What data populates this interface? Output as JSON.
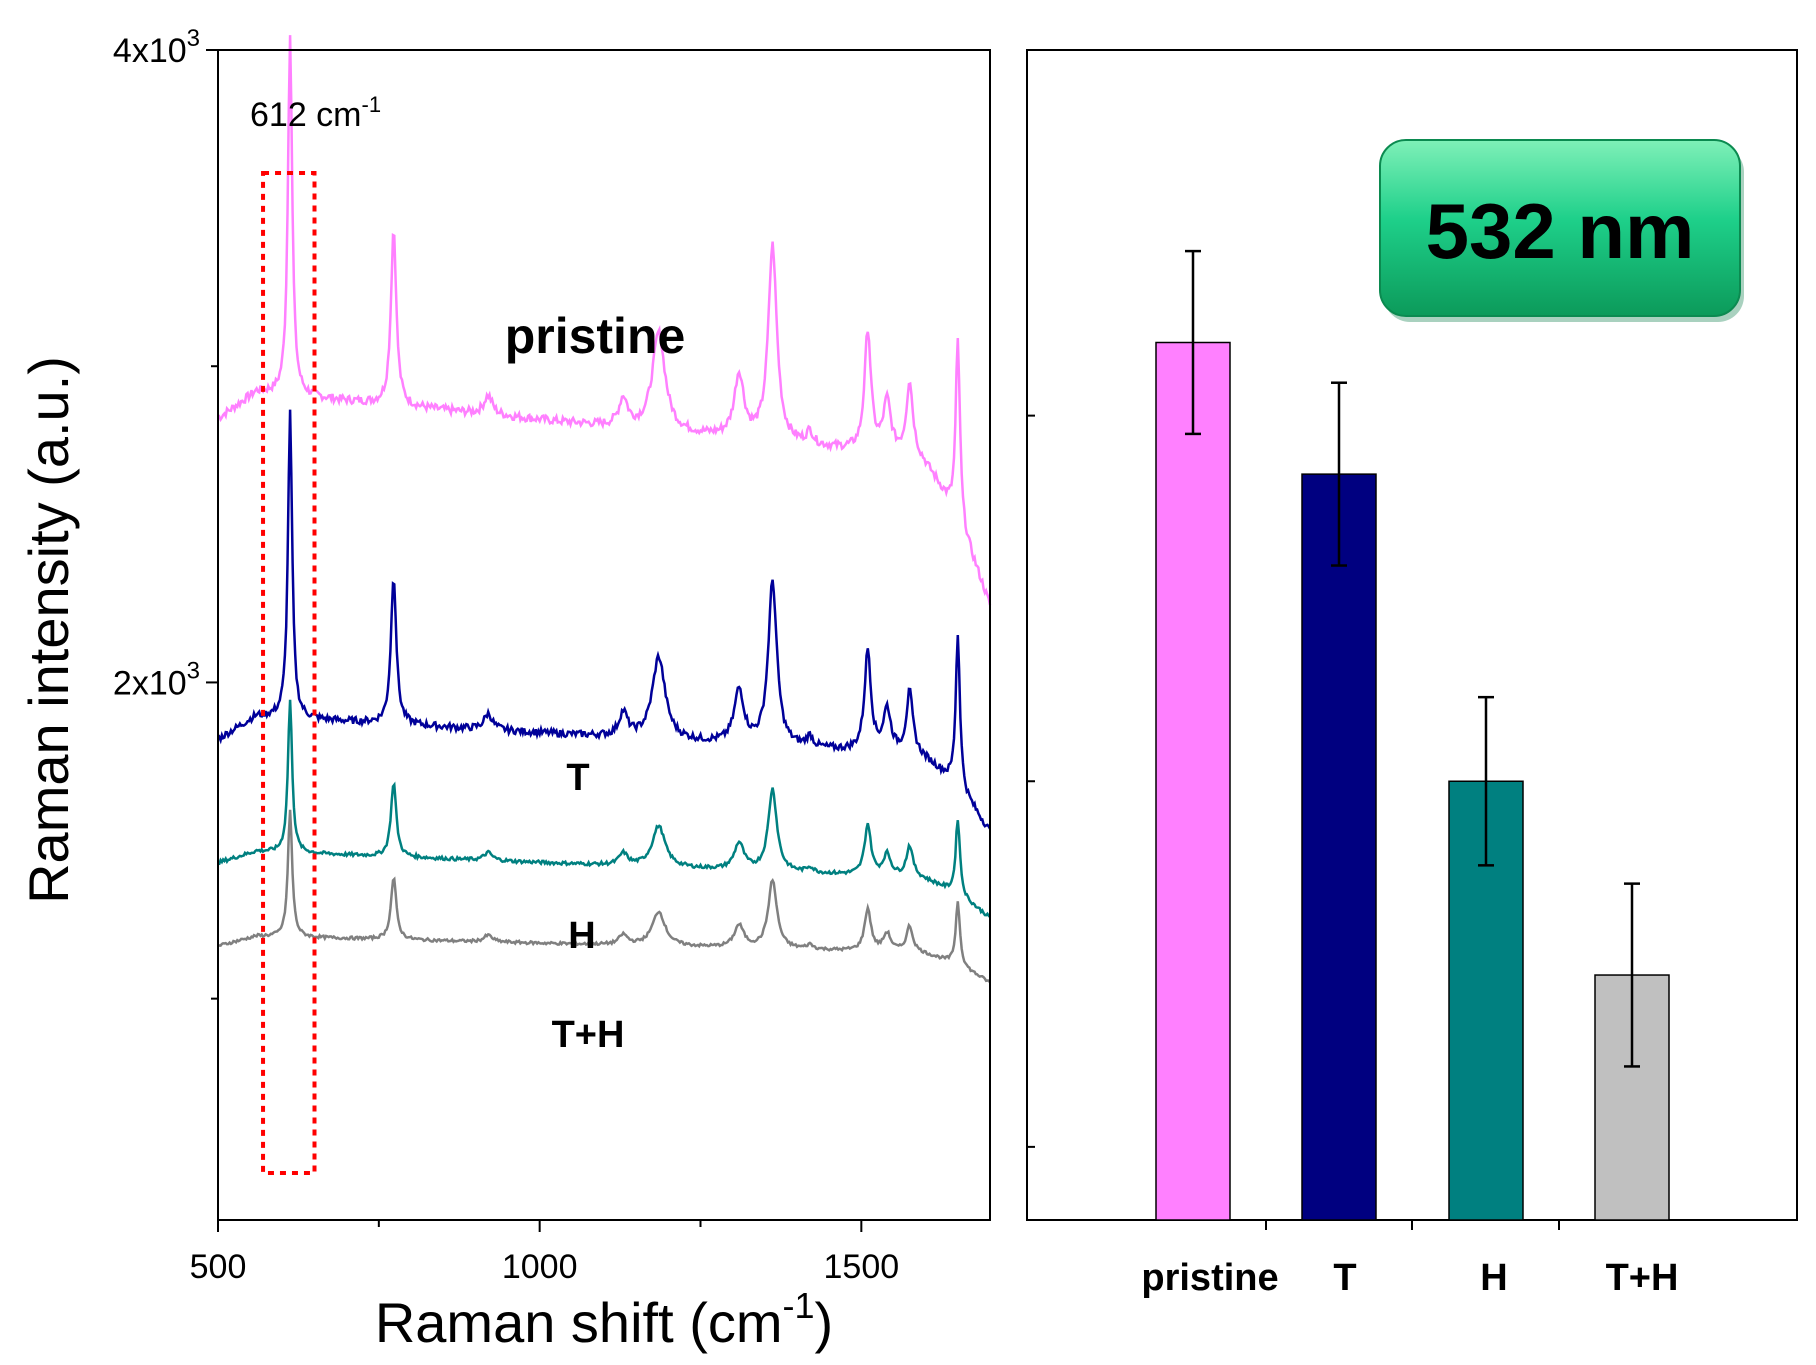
{
  "chart_data": [
    {
      "type": "line",
      "panel": "left",
      "xlabel_text": "Raman shift (cm",
      "xlabel_sup": "-1",
      "xlabel_close": ")",
      "ylabel": "Raman intensity (a.u.)",
      "xlim": [
        500,
        1700
      ],
      "ylim": [
        300,
        4000
      ],
      "x_ticks": [
        {
          "value": 500,
          "label": "500"
        },
        {
          "value": 1000,
          "label": "1000"
        },
        {
          "value": 1500,
          "label": "1500"
        }
      ],
      "y_ticks": [
        {
          "value": 4000,
          "base": "4x10",
          "exp": "3"
        },
        {
          "value": 2000,
          "base": "2x10",
          "exp": "3"
        }
      ],
      "annotation": {
        "text": "612 cm",
        "sup": "-1",
        "x_range": [
          570,
          650
        ]
      },
      "series": [
        {
          "name": "pristine",
          "label": "pristine",
          "color": "#ff80ff",
          "baseline": 2930,
          "slope": -0.2,
          "scale": 1.0,
          "end_drop": 450
        },
        {
          "name": "T",
          "label": "T",
          "color": "#000099",
          "baseline": 1900,
          "slope": -0.12,
          "scale": 0.84,
          "end_drop": 230
        },
        {
          "name": "H",
          "label": "H",
          "color": "#008080",
          "baseline": 1470,
          "slope": -0.08,
          "scale": 0.42,
          "end_drop": 120
        },
        {
          "name": "T+H",
          "label": "T+H",
          "color": "#808080",
          "baseline": 1200,
          "slope": -0.05,
          "scale": 0.35,
          "end_drop": 90
        }
      ],
      "peaks": [
        {
          "pos": 612,
          "height": 1150,
          "width": 4
        },
        {
          "pos": 773,
          "height": 560,
          "width": 5
        },
        {
          "pos": 920,
          "height": 60,
          "width": 8
        },
        {
          "pos": 1130,
          "height": 90,
          "width": 8
        },
        {
          "pos": 1185,
          "height": 310,
          "width": 12
        },
        {
          "pos": 1310,
          "height": 200,
          "width": 9
        },
        {
          "pos": 1362,
          "height": 620,
          "width": 8
        },
        {
          "pos": 1420,
          "height": 40,
          "width": 6
        },
        {
          "pos": 1510,
          "height": 380,
          "width": 6
        },
        {
          "pos": 1540,
          "height": 160,
          "width": 7
        },
        {
          "pos": 1575,
          "height": 230,
          "width": 6
        },
        {
          "pos": 1650,
          "height": 580,
          "width": 4
        }
      ]
    },
    {
      "type": "bar",
      "panel": "right",
      "categories": [
        "pristine",
        "T",
        "H",
        "T+H"
      ],
      "values": [
        2.4,
        2.04,
        1.2,
        0.67
      ],
      "errors": [
        0.25,
        0.25,
        0.23,
        0.25
      ],
      "colors": [
        "#ff80ff",
        "#000080",
        "#008080",
        "#c0c0c0"
      ],
      "ylim": [
        0,
        3.2
      ],
      "y_tick_values": [
        0.2,
        1.2,
        2.2
      ],
      "badge": "532 nm"
    }
  ]
}
